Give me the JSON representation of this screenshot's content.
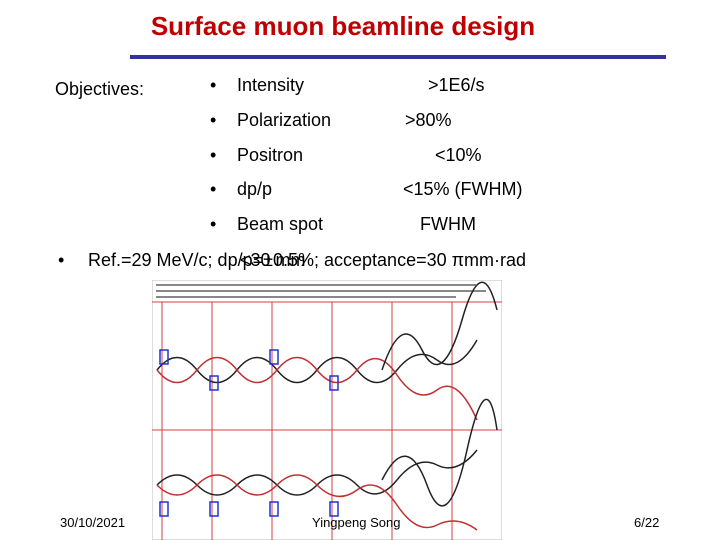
{
  "header": {
    "title": "Surface muon beamline design"
  },
  "objectives": {
    "label": "Objectives:",
    "items": [
      {
        "name": "Intensity",
        "value": ">1E6/s"
      },
      {
        "name": "Polarization",
        "value": ">80%"
      },
      {
        "name": "Positron",
        "value": "<10%"
      },
      {
        "name": "dp/p",
        "value": "<15% (FWHM)"
      },
      {
        "name": "Beam spot",
        "value": "FWHM",
        "note": "<30 mm"
      }
    ]
  },
  "reference": "Ref.=29 MeV/c; dp/p=±0.5%; acceptance=30 πmm·rad",
  "footer": {
    "date": "30/10/2021",
    "author": "Yingpeng Song",
    "page": "6/22"
  }
}
